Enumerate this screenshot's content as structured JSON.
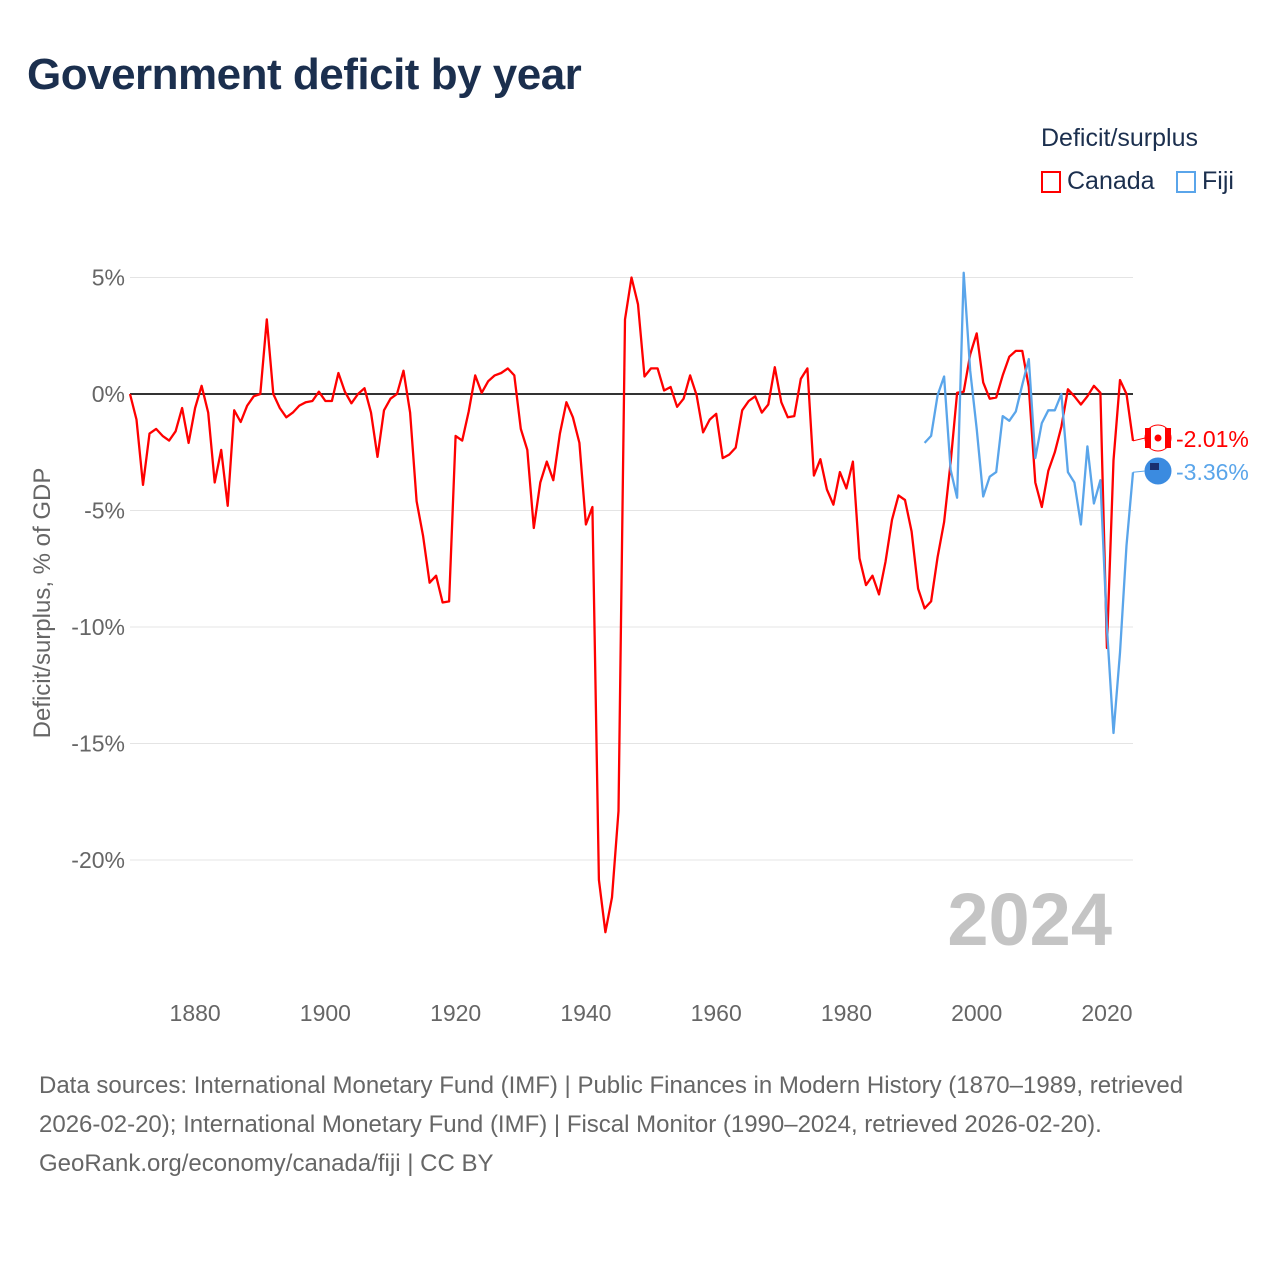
{
  "title": "Government deficit by year",
  "legend": {
    "title": "Deficit/surplus",
    "items": [
      {
        "name": "Canada",
        "color": "#ff0000"
      },
      {
        "name": "Fiji",
        "color": "#5aa5ea"
      }
    ]
  },
  "footer": {
    "sources": "Data sources: International Monetary Fund (IMF) | Public Finances in Modern History (1870–1989, retrieved 2026-02-20); International Monetary Fund (IMF) | Fiscal Monitor (1990–2024, retrieved 2026-02-20).",
    "credit": "GeoRank.org/economy/canada/fiji | CC BY"
  },
  "chart_data": {
    "type": "line",
    "title": "Government deficit by year",
    "xlabel": "",
    "ylabel": "Deficit/surplus, % of GDP",
    "xlim": [
      1870,
      2024
    ],
    "ylim": [
      -25,
      5.5
    ],
    "xticks": [
      1880,
      1900,
      1920,
      1940,
      1960,
      1980,
      2000,
      2020
    ],
    "yticks": [
      {
        "v": 5,
        "label": "5%"
      },
      {
        "v": 0,
        "label": "0%"
      },
      {
        "v": -5,
        "label": "-5%"
      },
      {
        "v": -10,
        "label": "-10%"
      },
      {
        "v": -15,
        "label": "-15%"
      },
      {
        "v": -20,
        "label": "-20%"
      }
    ],
    "year_watermark": "2024",
    "series": [
      {
        "name": "Canada",
        "color": "#ff0000",
        "start_year": 1870,
        "end_label": "-2.01%",
        "values": [
          0.0,
          -1.1,
          -3.9,
          -1.7,
          -1.5,
          -1.8,
          -2.0,
          -1.6,
          -0.6,
          -2.1,
          -0.6,
          0.35,
          -0.8,
          -3.8,
          -2.4,
          -4.8,
          -0.7,
          -1.2,
          -0.5,
          -0.1,
          0.0,
          3.2,
          0.0,
          -0.6,
          -1.0,
          -0.8,
          -0.5,
          -0.35,
          -0.3,
          0.1,
          -0.3,
          -0.3,
          0.9,
          0.1,
          -0.4,
          0.0,
          0.25,
          -0.8,
          -2.7,
          -0.7,
          -0.2,
          0.0,
          1.0,
          -0.8,
          -4.6,
          -6.1,
          -8.1,
          -7.8,
          -8.95,
          -8.9,
          -1.8,
          -2.0,
          -0.75,
          0.8,
          0.05,
          0.55,
          0.8,
          0.9,
          1.1,
          0.8,
          -1.5,
          -2.4,
          -5.75,
          -3.8,
          -2.9,
          -3.7,
          -1.7,
          -0.35,
          -1.0,
          -2.1,
          -5.6,
          -4.85,
          -20.85,
          -23.1,
          -21.6,
          -17.9,
          3.2,
          5.0,
          3.85,
          0.75,
          1.1,
          1.1,
          0.15,
          0.3,
          -0.55,
          -0.2,
          0.8,
          -0.05,
          -1.65,
          -1.1,
          -0.85,
          -2.75,
          -2.6,
          -2.3,
          -0.7,
          -0.3,
          -0.1,
          -0.8,
          -0.45,
          1.15,
          -0.35,
          -1.0,
          -0.95,
          0.65,
          1.1,
          -3.5,
          -2.8,
          -4.1,
          -4.75,
          -3.35,
          -4.05,
          -2.9,
          -7.05,
          -8.2,
          -7.8,
          -8.6,
          -7.2,
          -5.4,
          -4.35,
          -4.55,
          -5.9,
          -8.35,
          -9.2,
          -8.9,
          -7.0,
          -5.5,
          -2.95,
          0.05,
          0.1,
          1.7,
          2.6,
          0.5,
          -0.2,
          -0.15,
          0.8,
          1.6,
          1.85,
          1.85,
          0.3,
          -3.8,
          -4.85,
          -3.3,
          -2.5,
          -1.4,
          0.2,
          -0.1,
          -0.45,
          -0.1,
          0.35,
          0.05,
          -10.9,
          -2.85,
          0.6,
          0.0,
          -2.01
        ]
      },
      {
        "name": "Fiji",
        "color": "#5aa5ea",
        "start_year": 1992,
        "end_label": "-3.36%",
        "values": [
          -2.1,
          -1.8,
          -0.05,
          0.75,
          -3.25,
          -4.45,
          5.2,
          1.0,
          -1.5,
          -4.4,
          -3.55,
          -3.35,
          -0.95,
          -1.15,
          -0.75,
          0.4,
          1.5,
          -2.75,
          -1.25,
          -0.7,
          -0.7,
          0.0,
          -3.35,
          -3.8,
          -5.6,
          -2.25,
          -4.7,
          -3.7,
          -10.0,
          -14.55,
          -11.1,
          -6.5,
          -3.36
        ]
      }
    ]
  }
}
